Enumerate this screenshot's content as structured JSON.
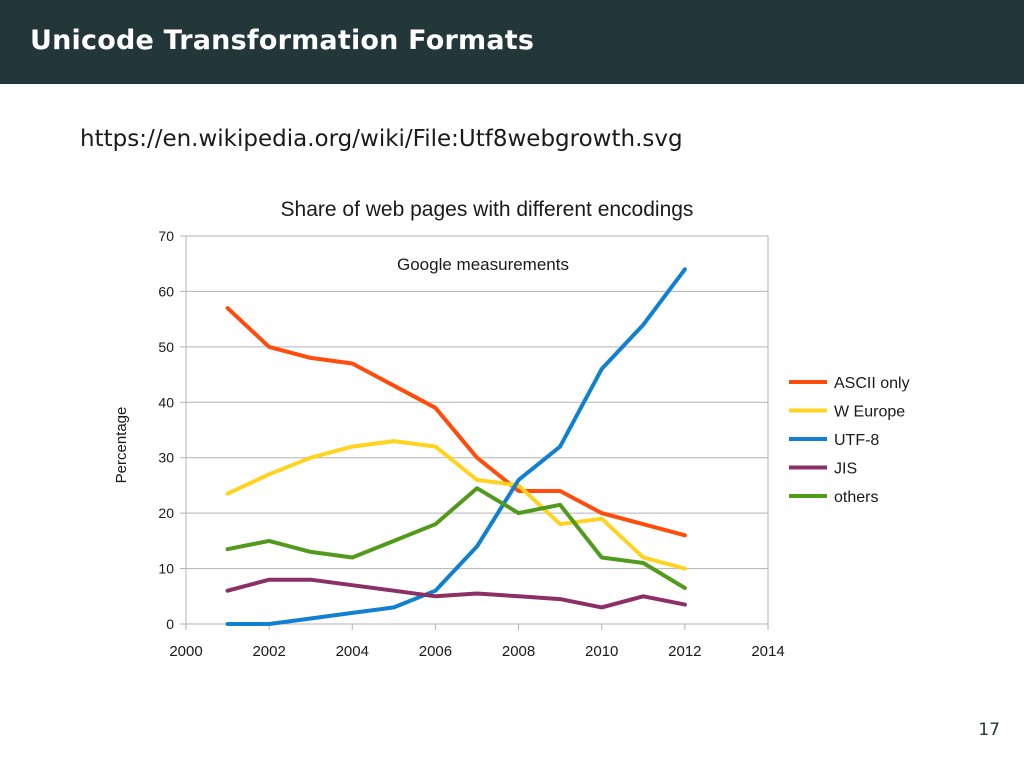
{
  "slide": {
    "title": "Unicode Transformation Formats",
    "source_url": "https://en.wikipedia.org/wiki/File:Utf8webgrowth.svg",
    "page_number": "17"
  },
  "chart_data": {
    "type": "line",
    "title": "Share of web pages with different encodings",
    "annotation": "Google measurements",
    "xlabel": "",
    "ylabel": "Percentage",
    "xlim": [
      2000,
      2014
    ],
    "ylim": [
      0,
      70
    ],
    "x_ticks": [
      2000,
      2002,
      2004,
      2006,
      2008,
      2010,
      2012,
      2014
    ],
    "y_ticks": [
      0,
      10,
      20,
      30,
      40,
      50,
      60,
      70
    ],
    "grid": true,
    "legend_position": "right",
    "x": [
      2001,
      2002,
      2003,
      2004,
      2005,
      2006,
      2007,
      2008,
      2009,
      2010,
      2011,
      2012
    ],
    "series": [
      {
        "name": "ASCII only",
        "color": "#ff4c0c",
        "values": [
          57,
          50,
          48,
          47,
          43,
          39,
          30,
          24,
          24,
          20,
          18,
          16
        ]
      },
      {
        "name": "W Europe",
        "color": "#ffd320",
        "values": [
          23.5,
          27,
          30,
          32,
          33,
          32,
          26,
          25,
          18,
          19,
          12,
          10
        ]
      },
      {
        "name": "UTF-8",
        "color": "#1180d0",
        "values": [
          0,
          0,
          1,
          2,
          3,
          6,
          14,
          26,
          32,
          46,
          54,
          64
        ]
      },
      {
        "name": "JIS",
        "color": "#8b2f66",
        "values": [
          6,
          8,
          8,
          7,
          6,
          5,
          5.5,
          5,
          4.5,
          3,
          5,
          3.5
        ]
      },
      {
        "name": "others",
        "color": "#519a1c",
        "values": [
          13.5,
          15,
          13,
          12,
          15,
          18,
          24.5,
          20,
          21.5,
          12,
          11,
          6.5
        ]
      }
    ]
  }
}
